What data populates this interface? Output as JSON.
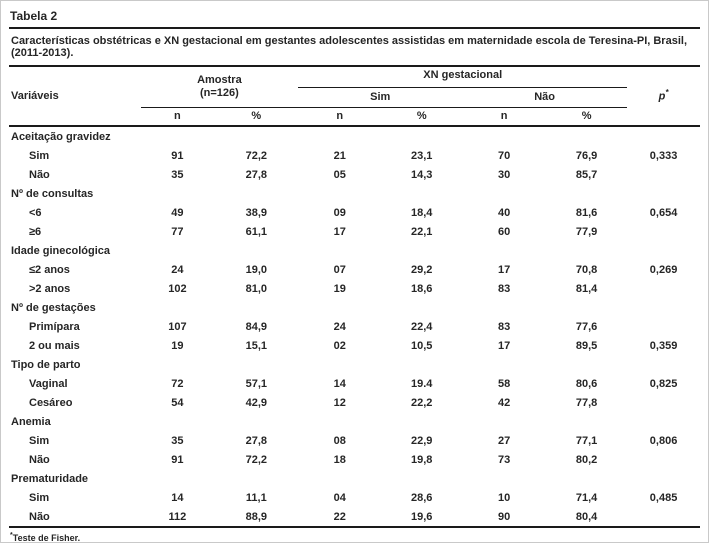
{
  "page": {
    "title": "Tabela 2",
    "caption": "Características obstétricas e XN gestacional em gestantes adolescentes assistidas em maternidade escola de Teresina-PI, Brasil, (2011-2013).",
    "footnote_marker": "*",
    "footnote_text": "Teste de Fisher."
  },
  "colors": {
    "text": "#262626",
    "rule": "#1a1a1a",
    "page_border": "#c9c9c9",
    "background": "#ffffff"
  },
  "table": {
    "header": {
      "variables": "Variáveis",
      "amostra_line1": "Amostra",
      "amostra_line2": "(n=126)",
      "xn_group": "XN gestacional",
      "sim": "Sim",
      "nao": "Não",
      "n": "n",
      "pct": "%",
      "p_label": "p",
      "p_sup": "*"
    },
    "sections": [
      {
        "label": "Aceitação gravidez",
        "rows": [
          {
            "label": "Sim",
            "values": [
              "91",
              "72,2",
              "21",
              "23,1",
              "70",
              "76,9",
              "0,333"
            ]
          },
          {
            "label": "Não",
            "values": [
              "35",
              "27,8",
              "05",
              "14,3",
              "30",
              "85,7",
              ""
            ]
          }
        ]
      },
      {
        "label": "Nº de consultas",
        "rows": [
          {
            "label": "<6",
            "values": [
              "49",
              "38,9",
              "09",
              "18,4",
              "40",
              "81,6",
              "0,654"
            ]
          },
          {
            "label": "≥6",
            "values": [
              "77",
              "61,1",
              "17",
              "22,1",
              "60",
              "77,9",
              ""
            ]
          }
        ]
      },
      {
        "label": "Idade ginecológica",
        "rows": [
          {
            "label": "≤2 anos",
            "values": [
              "24",
              "19,0",
              "07",
              "29,2",
              "17",
              "70,8",
              "0,269"
            ]
          },
          {
            "label": ">2 anos",
            "values": [
              "102",
              "81,0",
              "19",
              "18,6",
              "83",
              "81,4",
              ""
            ]
          }
        ]
      },
      {
        "label": "Nº de gestações",
        "rows": [
          {
            "label": "Primípara",
            "values": [
              "107",
              "84,9",
              "24",
              "22,4",
              "83",
              "77,6",
              ""
            ]
          },
          {
            "label": "2 ou mais",
            "values": [
              "19",
              "15,1",
              "02",
              "10,5",
              "17",
              "89,5",
              "0,359"
            ]
          }
        ]
      },
      {
        "label": "Tipo de parto",
        "rows": [
          {
            "label": "Vaginal",
            "values": [
              "72",
              "57,1",
              "14",
              "19.4",
              "58",
              "80,6",
              "0,825"
            ]
          },
          {
            "label": "Cesáreo",
            "values": [
              "54",
              "42,9",
              "12",
              "22,2",
              "42",
              "77,8",
              ""
            ]
          }
        ]
      },
      {
        "label": "Anemia",
        "rows": [
          {
            "label": "Sim",
            "values": [
              "35",
              "27,8",
              "08",
              "22,9",
              "27",
              "77,1",
              "0,806"
            ]
          },
          {
            "label": "Não",
            "values": [
              "91",
              "72,2",
              "18",
              "19,8",
              "73",
              "80,2",
              ""
            ]
          }
        ]
      },
      {
        "label": "Prematuridade",
        "rows": [
          {
            "label": "Sim",
            "values": [
              "14",
              "11,1",
              "04",
              "28,6",
              "10",
              "71,4",
              "0,485"
            ]
          },
          {
            "label": "Não",
            "values": [
              "112",
              "88,9",
              "22",
              "19,6",
              "90",
              "80,4",
              ""
            ]
          }
        ]
      }
    ]
  }
}
